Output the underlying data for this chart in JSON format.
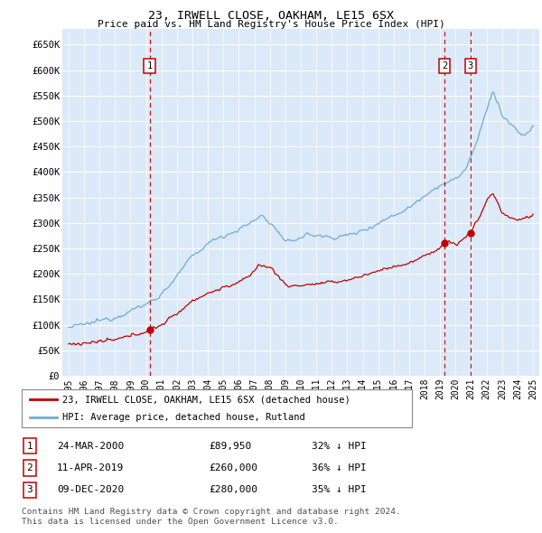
{
  "title": "23, IRWELL CLOSE, OAKHAM, LE15 6SX",
  "subtitle": "Price paid vs. HM Land Registry's House Price Index (HPI)",
  "ylabel_ticks": [
    "£0",
    "£50K",
    "£100K",
    "£150K",
    "£200K",
    "£250K",
    "£300K",
    "£350K",
    "£400K",
    "£450K",
    "£500K",
    "£550K",
    "£600K",
    "£650K"
  ],
  "ytick_values": [
    0,
    50000,
    100000,
    150000,
    200000,
    250000,
    300000,
    350000,
    400000,
    450000,
    500000,
    550000,
    600000,
    650000
  ],
  "background_color": "#dce9f8",
  "hpi_color": "#6baed6",
  "price_color": "#c00000",
  "sale_1": {
    "date_num": 2000.23,
    "value": 89950,
    "label": "1"
  },
  "sale_2": {
    "date_num": 2019.28,
    "value": 260000,
    "label": "2"
  },
  "sale_3": {
    "date_num": 2020.95,
    "value": 280000,
    "label": "3"
  },
  "legend_address": "23, IRWELL CLOSE, OAKHAM, LE15 6SX (detached house)",
  "legend_hpi": "HPI: Average price, detached house, Rutland",
  "table_rows": [
    {
      "num": "1",
      "date": "24-MAR-2000",
      "price": "£89,950",
      "pct": "32% ↓ HPI"
    },
    {
      "num": "2",
      "date": "11-APR-2019",
      "price": "£260,000",
      "pct": "36% ↓ HPI"
    },
    {
      "num": "3",
      "date": "09-DEC-2020",
      "price": "£280,000",
      "pct": "35% ↓ HPI"
    }
  ],
  "footnote": "Contains HM Land Registry data © Crown copyright and database right 2024.\nThis data is licensed under the Open Government Licence v3.0.",
  "xmin": 1994.6,
  "xmax": 2025.4,
  "ymin": 0,
  "ymax": 680000
}
